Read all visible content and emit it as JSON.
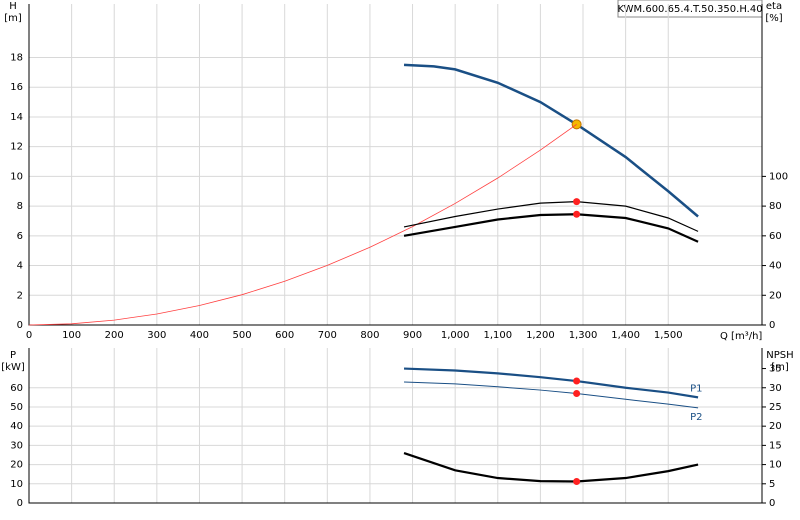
{
  "chart_data": [
    {
      "type": "line",
      "title": "KWM.600.65.4.T.50.350.H.40",
      "ylabel": [
        "H",
        "[m]"
      ],
      "y2label": [
        "eta",
        "[%]"
      ],
      "xlabel": "Q [m³/h]",
      "xlim": [
        0,
        1720
      ],
      "xticks": [
        0,
        100,
        200,
        300,
        400,
        500,
        600,
        700,
        800,
        900,
        {
          "value": 1000,
          "label": "1,000"
        },
        {
          "value": 1100,
          "label": "1,100"
        },
        {
          "value": 1200,
          "label": "1,200"
        },
        {
          "value": 1300,
          "label": "1,300"
        },
        {
          "value": 1400,
          "label": "1,400"
        },
        {
          "value": 1500,
          "label": "1,500"
        }
      ],
      "ylim": [
        0,
        21.6
      ],
      "yticks": [
        0,
        2,
        4,
        6,
        8,
        10,
        12,
        14,
        16,
        18
      ],
      "y2lim": [
        0,
        216
      ],
      "y2ticks": [
        0,
        20,
        40,
        60,
        80,
        100
      ],
      "grid": true,
      "series": [
        {
          "color": "#1a4f85",
          "width": 2.5,
          "x": [
            880,
            950,
            1000,
            1100,
            1200,
            1285,
            1400,
            1500,
            1570
          ],
          "values": [
            17.5,
            17.4,
            17.2,
            16.3,
            15.0,
            13.5,
            11.3,
            9.0,
            7.3
          ],
          "marker": {
            "x": 1285,
            "y": 13.5,
            "color": "#f5b800"
          }
        },
        {
          "color": "#ff4040",
          "width": 0.8,
          "x": [
            0,
            100,
            200,
            300,
            400,
            500,
            600,
            700,
            800,
            900,
            1000,
            1100,
            1200,
            1285
          ],
          "values": [
            0,
            0.08,
            0.33,
            0.74,
            1.31,
            2.04,
            2.94,
            4.01,
            5.23,
            6.62,
            8.18,
            9.89,
            11.77,
            13.5
          ]
        },
        {
          "color": "#000000",
          "width": 1.2,
          "axis": "y2",
          "x": [
            880,
            1000,
            1100,
            1200,
            1285,
            1400,
            1500,
            1570
          ],
          "values": [
            66,
            73,
            78,
            82,
            83,
            80,
            72,
            63
          ],
          "marker": {
            "x": 1285,
            "y": 83,
            "color": "#ff2020"
          }
        },
        {
          "color": "#000000",
          "width": 2.2,
          "axis": "y2",
          "x": [
            880,
            1000,
            1100,
            1200,
            1285,
            1400,
            1500,
            1570
          ],
          "values": [
            60,
            66,
            71,
            74,
            74.5,
            72,
            65,
            56
          ],
          "marker": {
            "x": 1285,
            "y": 74.5,
            "color": "#ff2020"
          }
        }
      ]
    },
    {
      "type": "line",
      "ylabel": [
        "P",
        "[kW]"
      ],
      "y2label": [
        "NPSH",
        "[m]"
      ],
      "ylim": [
        0,
        80.7
      ],
      "yticks": [
        0,
        10,
        20,
        30,
        40,
        50,
        60
      ],
      "y2lim": [
        0,
        40.35
      ],
      "y2ticks": [
        0,
        5,
        10,
        15,
        20,
        25,
        30,
        35
      ],
      "grid": true,
      "series": [
        {
          "name": "P1",
          "color": "#1a4f85",
          "width": 2.2,
          "x": [
            880,
            1000,
            1100,
            1200,
            1285,
            1400,
            1500,
            1570
          ],
          "values": [
            70,
            69,
            67.5,
            65.5,
            63.5,
            60,
            57.5,
            55
          ],
          "marker": {
            "x": 1285,
            "y": 63.5,
            "color": "#ff2020"
          }
        },
        {
          "name": "P2",
          "color": "#1a4f85",
          "width": 1,
          "x": [
            880,
            1000,
            1100,
            1200,
            1285,
            1400,
            1500,
            1570
          ],
          "values": [
            63,
            62,
            60.5,
            58.8,
            57,
            54,
            51.5,
            49.5
          ],
          "marker": {
            "x": 1285,
            "y": 57,
            "color": "#ff2020"
          }
        },
        {
          "color": "#000000",
          "width": 2.2,
          "axis": "y2",
          "x": [
            880,
            1000,
            1100,
            1200,
            1285,
            1400,
            1500,
            1570
          ],
          "values": [
            13,
            8.5,
            6.5,
            5.7,
            5.6,
            6.5,
            8.3,
            10
          ],
          "marker": {
            "x": 1285,
            "y": 5.6,
            "color": "#ff2020"
          }
        }
      ]
    }
  ]
}
